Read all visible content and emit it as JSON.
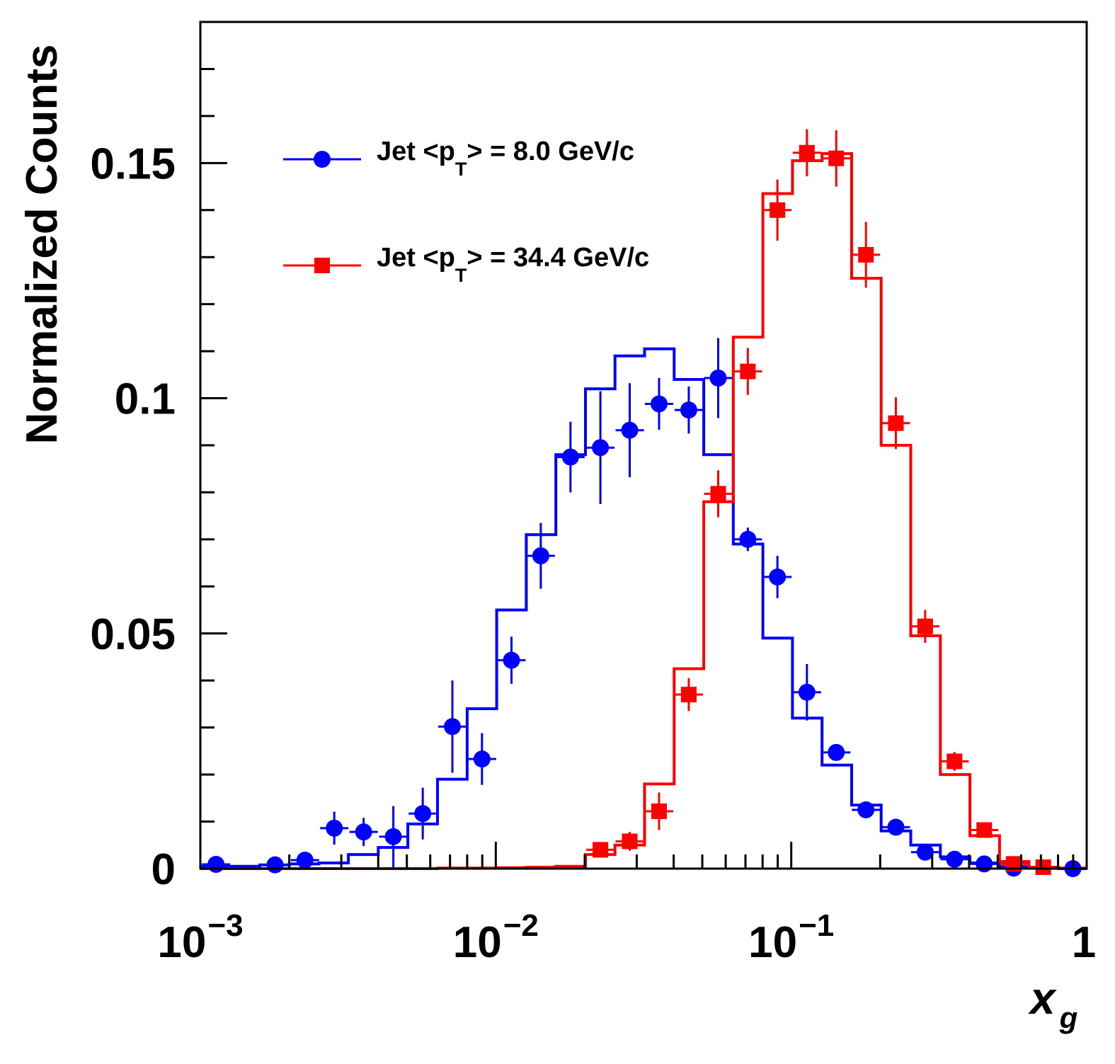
{
  "chart_data": {
    "type": "scatter",
    "xlabel": "x",
    "xlabel_sub": "g",
    "ylabel": "Normalized Counts",
    "x_scale": "log",
    "xlim": [
      0.001,
      1
    ],
    "ylim": [
      0,
      0.18
    ],
    "grid": false,
    "legend_placement": "top-left",
    "x_ticks": [
      {
        "value": 0.001,
        "base": "10",
        "exp": "−3"
      },
      {
        "value": 0.01,
        "base": "10",
        "exp": "−2"
      },
      {
        "value": 0.1,
        "base": "10",
        "exp": "−1"
      },
      {
        "value": 1,
        "base": "1",
        "exp": ""
      }
    ],
    "y_ticks": [
      {
        "value": 0,
        "label": "0"
      },
      {
        "value": 0.05,
        "label": "0.05"
      },
      {
        "value": 0.1,
        "label": "0.1"
      },
      {
        "value": 0.15,
        "label": "0.15"
      }
    ],
    "series": [
      {
        "name": "Jet <pT> = 8.0 GeV/c",
        "legend_main": "Jet <p",
        "legend_sub": "T",
        "legend_tail": "> = 8.0 GeV/c",
        "color": "#0000ff",
        "marker": "circle",
        "points": [
          {
            "x": 0.00113,
            "y": 0.0009,
            "err": 0.0003
          },
          {
            "x": 0.00179,
            "y": 0.0008,
            "err": 0.0003
          },
          {
            "x": 0.00226,
            "y": 0.0018,
            "err": 0.0008
          },
          {
            "x": 0.00284,
            "y": 0.0086,
            "err": 0.0035
          },
          {
            "x": 0.00357,
            "y": 0.0078,
            "err": 0.003
          },
          {
            "x": 0.0045,
            "y": 0.0068,
            "err": 0.0065
          },
          {
            "x": 0.00566,
            "y": 0.0117,
            "err": 0.0055
          },
          {
            "x": 0.00713,
            "y": 0.0302,
            "err": 0.0098
          },
          {
            "x": 0.00898,
            "y": 0.0233,
            "err": 0.0055
          },
          {
            "x": 0.0113,
            "y": 0.0443,
            "err": 0.005
          },
          {
            "x": 0.0142,
            "y": 0.0665,
            "err": 0.007
          },
          {
            "x": 0.0179,
            "y": 0.0875,
            "err": 0.0075
          },
          {
            "x": 0.0226,
            "y": 0.0895,
            "err": 0.012
          },
          {
            "x": 0.0284,
            "y": 0.0932,
            "err": 0.01
          },
          {
            "x": 0.0357,
            "y": 0.0988,
            "err": 0.0055
          },
          {
            "x": 0.045,
            "y": 0.0975,
            "err": 0.005
          },
          {
            "x": 0.0566,
            "y": 0.1043,
            "err": 0.0085
          },
          {
            "x": 0.0713,
            "y": 0.07,
            "err": 0.0025
          },
          {
            "x": 0.0898,
            "y": 0.062,
            "err": 0.0045
          },
          {
            "x": 0.113,
            "y": 0.0375,
            "err": 0.006
          },
          {
            "x": 0.142,
            "y": 0.0247,
            "err": 0.0015
          },
          {
            "x": 0.179,
            "y": 0.0125,
            "err": 0.001
          },
          {
            "x": 0.226,
            "y": 0.0088,
            "err": 0.0006
          },
          {
            "x": 0.284,
            "y": 0.0035,
            "err": 0.0004
          },
          {
            "x": 0.357,
            "y": 0.002,
            "err": 0.0003
          },
          {
            "x": 0.45,
            "y": 0.001,
            "err": 0.0002
          },
          {
            "x": 0.566,
            "y": 0.0001,
            "err": 0.0001
          },
          {
            "x": 0.898,
            "y": 0.0,
            "err": 0.0001
          }
        ],
        "hist_edges": [
          0.001,
          0.00159,
          0.002,
          0.00252,
          0.00317,
          0.004,
          0.00504,
          0.00635,
          0.008,
          0.01007,
          0.01268,
          0.01597,
          0.02011,
          0.02532,
          0.03188,
          0.04015,
          0.05056,
          0.06367,
          0.08017,
          0.10096,
          0.12713,
          0.16009,
          0.2016,
          0.25386,
          0.31968,
          0.40256,
          0.50692,
          0.63835,
          0.80384,
          1.0
        ],
        "hist_values": [
          0.0005,
          0.0008,
          0.001,
          0.0012,
          0.003,
          0.0045,
          0.0095,
          0.019,
          0.034,
          0.055,
          0.071,
          0.088,
          0.102,
          0.109,
          0.1105,
          0.104,
          0.088,
          0.069,
          0.049,
          0.032,
          0.022,
          0.0135,
          0.008,
          0.005,
          0.0025,
          0.0012,
          0.0004,
          0.0001,
          0.0
        ]
      },
      {
        "name": "Jet <pT> = 34.4 GeV/c",
        "legend_main": "Jet <p",
        "legend_sub": "T",
        "legend_tail": "> = 34.4 GeV/c",
        "color": "#ff0000",
        "marker": "square",
        "points": [
          {
            "x": 0.0226,
            "y": 0.004,
            "err": 0.0012
          },
          {
            "x": 0.0284,
            "y": 0.0058,
            "err": 0.002
          },
          {
            "x": 0.0357,
            "y": 0.0122,
            "err": 0.004
          },
          {
            "x": 0.045,
            "y": 0.037,
            "err": 0.0035
          },
          {
            "x": 0.0566,
            "y": 0.0797,
            "err": 0.005
          },
          {
            "x": 0.0713,
            "y": 0.1057,
            "err": 0.005
          },
          {
            "x": 0.0898,
            "y": 0.14,
            "err": 0.0065
          },
          {
            "x": 0.113,
            "y": 0.1522,
            "err": 0.005
          },
          {
            "x": 0.142,
            "y": 0.151,
            "err": 0.006
          },
          {
            "x": 0.179,
            "y": 0.1305,
            "err": 0.007
          },
          {
            "x": 0.226,
            "y": 0.0947,
            "err": 0.0055
          },
          {
            "x": 0.284,
            "y": 0.0515,
            "err": 0.0035
          },
          {
            "x": 0.357,
            "y": 0.0228,
            "err": 0.002
          },
          {
            "x": 0.45,
            "y": 0.0082,
            "err": 0.001
          },
          {
            "x": 0.566,
            "y": 0.001,
            "err": 0.0003
          },
          {
            "x": 0.713,
            "y": 0.0003,
            "err": 0.0002
          }
        ],
        "hist_edges": [
          0.001,
          0.00635,
          0.008,
          0.01007,
          0.01268,
          0.01597,
          0.02011,
          0.02532,
          0.03188,
          0.04015,
          0.05056,
          0.06367,
          0.08017,
          0.10096,
          0.12713,
          0.16009,
          0.2016,
          0.25386,
          0.31968,
          0.40256,
          0.50692,
          0.63835,
          0.80384,
          1.0
        ],
        "hist_values": [
          0.0,
          0.0001,
          0.0001,
          0.0002,
          0.0003,
          0.0005,
          0.003,
          0.005,
          0.018,
          0.0425,
          0.078,
          0.113,
          0.1435,
          0.1505,
          0.152,
          0.1255,
          0.09,
          0.0495,
          0.02,
          0.007,
          0.0015,
          0.0003,
          0.0001
        ]
      }
    ]
  }
}
